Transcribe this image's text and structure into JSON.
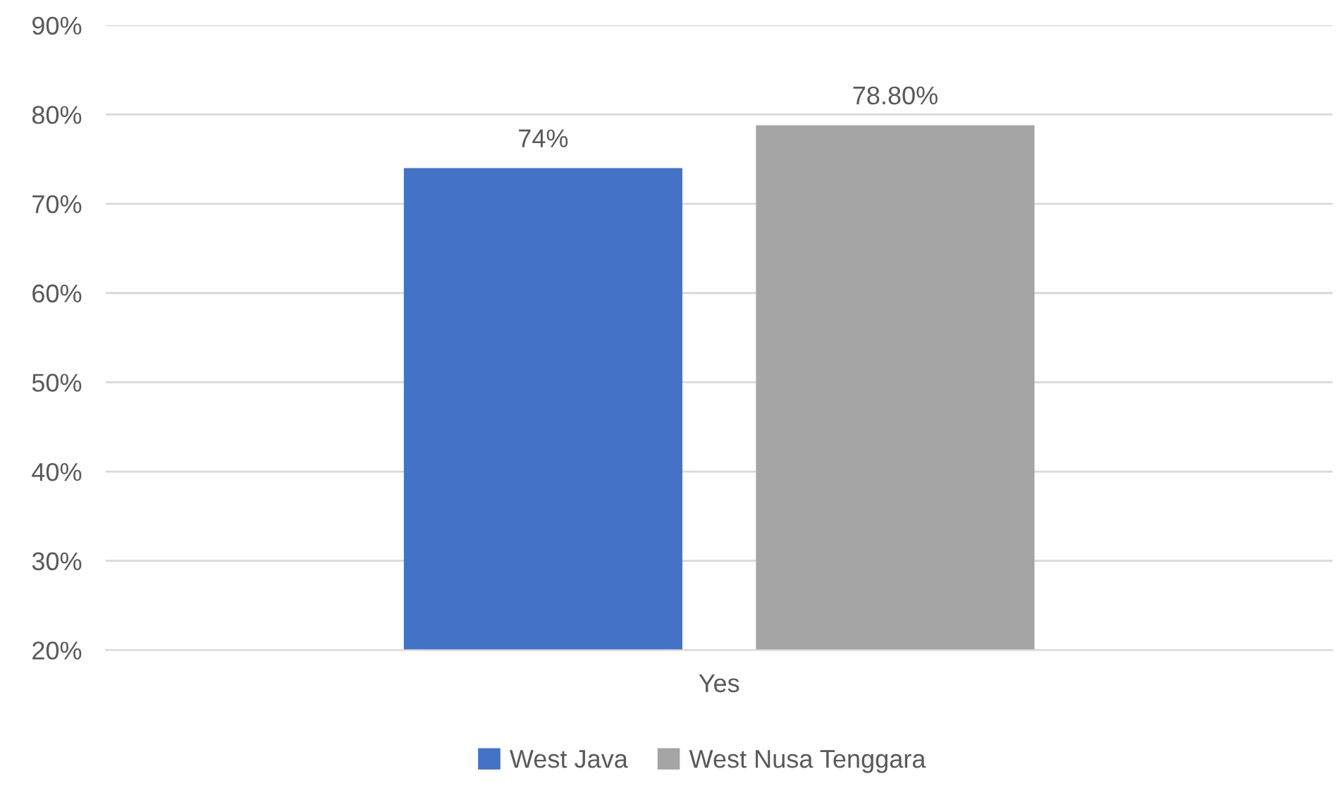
{
  "chart_data": {
    "type": "bar",
    "categories": [
      "Yes"
    ],
    "series": [
      {
        "name": "West Java",
        "color": "#4472c4",
        "values": [
          74
        ],
        "value_labels": [
          "74%"
        ]
      },
      {
        "name": "West Nusa Tenggara",
        "color": "#a5a5a5",
        "values": [
          78.8
        ],
        "value_labels": [
          "78.80%"
        ]
      }
    ],
    "ylim": [
      20,
      90
    ],
    "yticks": [
      {
        "value": 20,
        "label": "20%"
      },
      {
        "value": 30,
        "label": "30%"
      },
      {
        "value": 40,
        "label": "40%"
      },
      {
        "value": 50,
        "label": "50%"
      },
      {
        "value": 60,
        "label": "60%"
      },
      {
        "value": 70,
        "label": "70%"
      },
      {
        "value": 80,
        "label": "80%"
      },
      {
        "value": 90,
        "label": "90%"
      }
    ],
    "grid": "y",
    "legend": "bottom"
  }
}
